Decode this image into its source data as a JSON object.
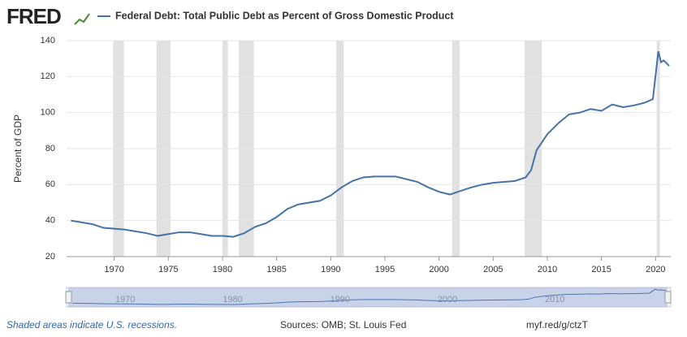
{
  "brand": "FRED",
  "chart_data": {
    "type": "line",
    "ylabel": "Percent of GDP",
    "x": [
      1966,
      1967,
      1968,
      1969,
      1970,
      1971,
      1972,
      1973,
      1974,
      1975,
      1976,
      1977,
      1978,
      1979,
      1980,
      1981,
      1982,
      1983,
      1984,
      1985,
      1986,
      1987,
      1988,
      1989,
      1990,
      1991,
      1992,
      1993,
      1994,
      1995,
      1996,
      1997,
      1998,
      1999,
      2000,
      2001,
      2002,
      2003,
      2004,
      2005,
      2006,
      2007,
      2008,
      2008.5,
      2009,
      2010,
      2011,
      2012,
      2013,
      2014,
      2015,
      2016,
      2017,
      2018,
      2019,
      2019.75,
      2020.25,
      2020.5,
      2020.75,
      2021.25
    ],
    "series": [
      {
        "name": "Federal Debt: Total Public Debt as Percent of Gross Domestic Product",
        "color": "#4572a7",
        "values": [
          40,
          39,
          38,
          36,
          35.5,
          35,
          34,
          33,
          31.5,
          32.5,
          33.5,
          33.5,
          32.5,
          31.5,
          31.5,
          31,
          33,
          36.5,
          38.5,
          42,
          46.5,
          49,
          50,
          51,
          54,
          58.5,
          62,
          64,
          64.5,
          64.5,
          64.5,
          63,
          61.5,
          58.5,
          56,
          54.5,
          56.5,
          58.5,
          60,
          61,
          61.5,
          62,
          64,
          68,
          79,
          88,
          94,
          99,
          100,
          102,
          101,
          104.5,
          103,
          104,
          105.5,
          107.5,
          134,
          128,
          129,
          126
        ]
      }
    ],
    "xlim": [
      1965.6,
      2021.4
    ],
    "xticks": [
      1970,
      1975,
      1980,
      1985,
      1990,
      1995,
      2000,
      2005,
      2010,
      2015,
      2020
    ],
    "ylim": [
      20,
      140
    ],
    "yticks": [
      20,
      40,
      60,
      80,
      100,
      120,
      140
    ],
    "grid": true,
    "recessions": [
      [
        1969.9,
        1970.9
      ],
      [
        1973.9,
        1975.2
      ],
      [
        1980.0,
        1980.5
      ],
      [
        1981.5,
        1982.9
      ],
      [
        1990.5,
        1991.2
      ],
      [
        2001.2,
        2001.9
      ],
      [
        2007.9,
        2009.5
      ],
      [
        2020.1,
        2020.4
      ]
    ],
    "recession_color": "#e1e1e1",
    "navigator_ticks": [
      1970,
      1980,
      1990,
      2000,
      2010
    ]
  },
  "footer": {
    "note": "Shaded areas indicate U.S. recessions.",
    "sources": "Sources: OMB; St. Louis Fed",
    "link": "myf.red/g/ctzT"
  }
}
